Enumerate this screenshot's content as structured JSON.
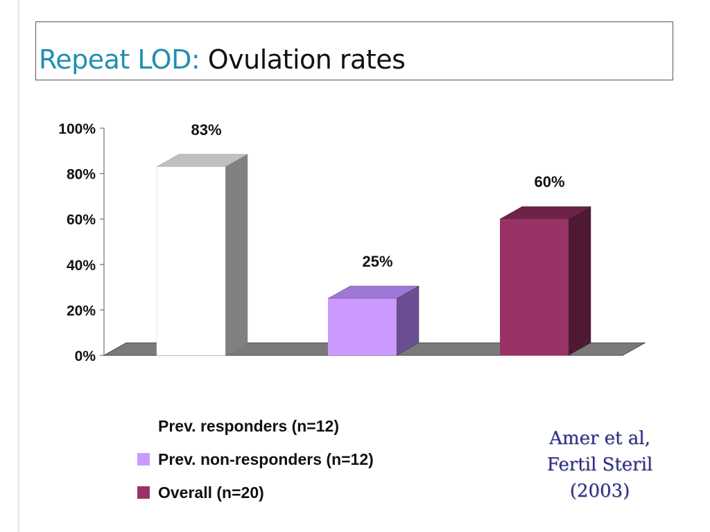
{
  "slide": {
    "title_prefix": "Repeat LOD:",
    "title_main": "Ovulation rates",
    "citation": {
      "line1": "Amer et al,",
      "line2": "Fertil Steril",
      "line3": "(2003)"
    }
  },
  "colors": {
    "title_prefix": "#1f8fb0",
    "citation": "#2c2c8a",
    "floor_top": "#7a7a7a",
    "floor_front": "#5a5a5a"
  },
  "chart_data": {
    "type": "bar",
    "title": "",
    "xlabel": "",
    "ylabel": "",
    "ylim": [
      0,
      100
    ],
    "y_ticks": [
      "0%",
      "20%",
      "40%",
      "60%",
      "80%",
      "100%"
    ],
    "y_tick_values": [
      0,
      20,
      40,
      60,
      80,
      100
    ],
    "categories": [
      "Prev. responders (n=12)",
      "Prev. non-responders (n=12)",
      "Overall (n=20)"
    ],
    "values": [
      83,
      25,
      60
    ],
    "data_labels": [
      "83%",
      "25%",
      "60%"
    ],
    "bar_colors": [
      {
        "front": "#ffffff",
        "top": "#c0c0c0",
        "side": "#808080"
      },
      {
        "front": "#cc99ff",
        "top": "#9e78d6",
        "side": "#6a4f92"
      },
      {
        "front": "#993366",
        "top": "#6f2248",
        "side": "#4f1934"
      }
    ],
    "legend": {
      "placement": "bottom",
      "entries": [
        "Prev. responders (n=12)",
        "Prev. non-responders (n=12)",
        "Overall (n=20)"
      ]
    },
    "grid": false,
    "style": "3d-column"
  }
}
